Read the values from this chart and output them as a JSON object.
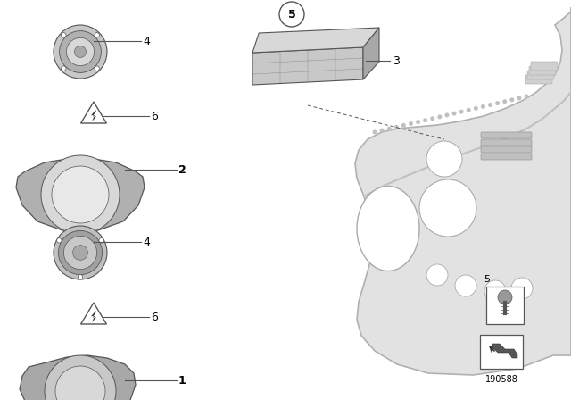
{
  "bg_color": "#ffffff",
  "part_number": "190588",
  "line_color": "#555555",
  "label_color": "#000000",
  "panel_fill": "#e0e0e0",
  "panel_edge": "#aaaaaa",
  "speaker_dark": "#888888",
  "speaker_mid": "#aaaaaa",
  "speaker_light": "#cccccc",
  "carrier_fill": "#b8b8b8",
  "enclosure_top": "#d0d0d0",
  "enclosure_side": "#b0b0b0",
  "enclosure_front": "#c0c0c0"
}
